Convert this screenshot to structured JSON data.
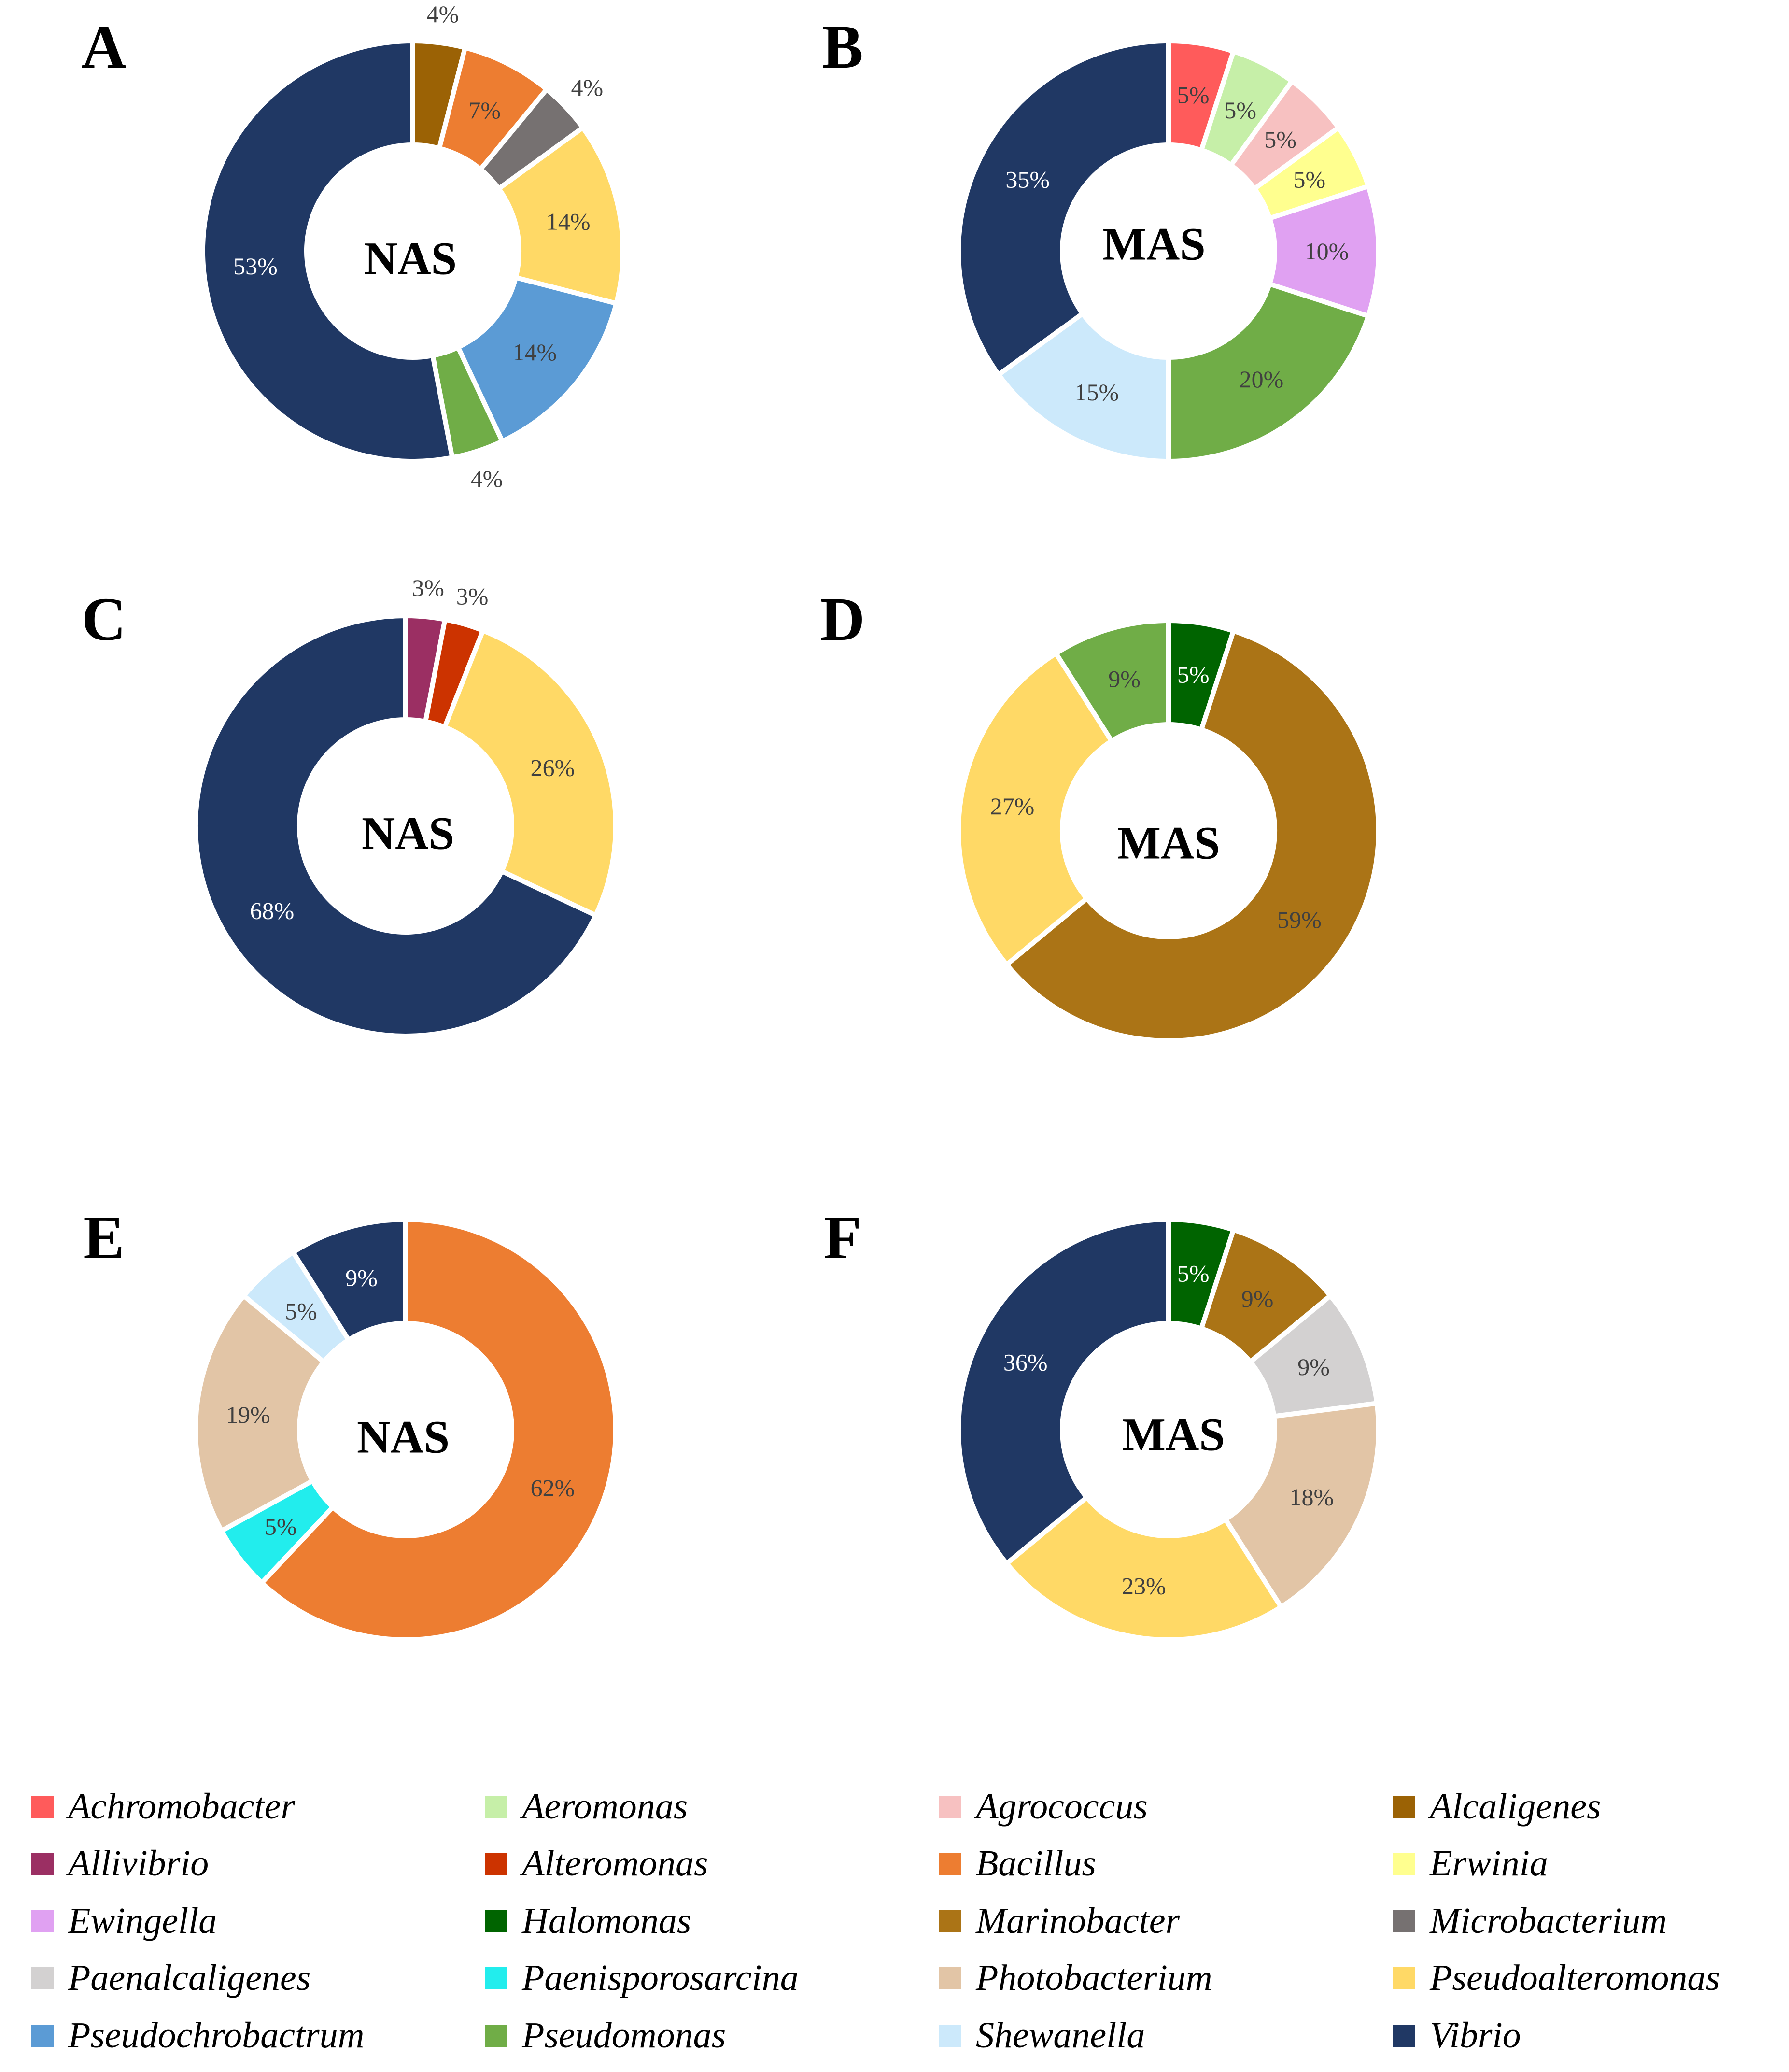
{
  "colors": {
    "Achromobacter": "#ff5b5b",
    "Aeromonas": "#c6efa8",
    "Agrococcus": "#f7c1c1",
    "Alcaligenes": "#9b6205",
    "Allivibrio": "#9b2f63",
    "Alteromonas": "#cc3300",
    "Bacillus": "#ed7d31",
    "Erwinia": "#ffff8f",
    "Ewingella": "#e0a1f2",
    "Halomonas": "#006400",
    "Marinobacter": "#ab7416",
    "Microbacterium": "#767171",
    "Paenalcaligenes": "#d3d1d1",
    "Paenisporosarcina": "#22eded",
    "Photobacterium": "#e2c5a6",
    "Pseudoalteromonas": "#ffd966",
    "Pseudochrobactrum": "#5b9bd5",
    "Pseudomonas": "#70ad47",
    "Shewanella": "#cce9fb",
    "Vibrio": "#203864"
  },
  "chart_data": [
    {
      "type": "donut",
      "panel": "A",
      "center": "NAS",
      "slices": [
        {
          "genus": "Alcaligenes",
          "value": 4,
          "label": "4%"
        },
        {
          "genus": "Bacillus",
          "value": 7,
          "label": "7%"
        },
        {
          "genus": "Microbacterium",
          "value": 4,
          "label": "4%"
        },
        {
          "genus": "Pseudoalteromonas",
          "value": 14,
          "label": "14%"
        },
        {
          "genus": "Pseudochrobactrum",
          "value": 14,
          "label": "14%"
        },
        {
          "genus": "Pseudomonas",
          "value": 4,
          "label": "4%"
        },
        {
          "genus": "Vibrio",
          "value": 53,
          "label": "53%"
        }
      ]
    },
    {
      "type": "donut",
      "panel": "B",
      "center": "MAS",
      "slices": [
        {
          "genus": "Achromobacter",
          "value": 5,
          "label": "5%"
        },
        {
          "genus": "Aeromonas",
          "value": 5,
          "label": "5%"
        },
        {
          "genus": "Agrococcus",
          "value": 5,
          "label": "5%"
        },
        {
          "genus": "Erwinia",
          "value": 5,
          "label": "5%"
        },
        {
          "genus": "Ewingella",
          "value": 10,
          "label": "10%"
        },
        {
          "genus": "Pseudomonas",
          "value": 20,
          "label": "20%"
        },
        {
          "genus": "Shewanella",
          "value": 15,
          "label": "15%"
        },
        {
          "genus": "Vibrio",
          "value": 35,
          "label": "35%"
        }
      ]
    },
    {
      "type": "donut",
      "panel": "C",
      "center": "NAS",
      "slices": [
        {
          "genus": "Allivibrio",
          "value": 3,
          "label": "3%"
        },
        {
          "genus": "Alteromonas",
          "value": 3,
          "label": "3%"
        },
        {
          "genus": "Pseudoalteromonas",
          "value": 26,
          "label": "26%"
        },
        {
          "genus": "Vibrio",
          "value": 68,
          "label": "68%"
        }
      ]
    },
    {
      "type": "donut",
      "panel": "D",
      "center": "MAS",
      "slices": [
        {
          "genus": "Halomonas",
          "value": 5,
          "label": "5%"
        },
        {
          "genus": "Marinobacter",
          "value": 59,
          "label": "59%"
        },
        {
          "genus": "Pseudoalteromonas",
          "value": 27,
          "label": "27%"
        },
        {
          "genus": "Pseudomonas",
          "value": 9,
          "label": "9%"
        }
      ]
    },
    {
      "type": "donut",
      "panel": "E",
      "center": "NAS",
      "slices": [
        {
          "genus": "Bacillus",
          "value": 62,
          "label": "62%"
        },
        {
          "genus": "Paenisporosarcina",
          "value": 5,
          "label": "5%"
        },
        {
          "genus": "Photobacterium",
          "value": 19,
          "label": "19%"
        },
        {
          "genus": "Shewanella",
          "value": 5,
          "label": "5%"
        },
        {
          "genus": "Vibrio",
          "value": 9,
          "label": "9%"
        }
      ]
    },
    {
      "type": "donut",
      "panel": "F",
      "center": "MAS",
      "slices": [
        {
          "genus": "Halomonas",
          "value": 5,
          "label": "5%"
        },
        {
          "genus": "Marinobacter",
          "value": 9,
          "label": "9%"
        },
        {
          "genus": "Paenalcaligenes",
          "value": 9,
          "label": "9%"
        },
        {
          "genus": "Photobacterium",
          "value": 18,
          "label": "18%"
        },
        {
          "genus": "Pseudoalteromonas",
          "value": 23,
          "label": "23%"
        },
        {
          "genus": "Vibrio",
          "value": 36,
          "label": "36%"
        }
      ]
    }
  ],
  "legend": [
    "Achromobacter",
    "Aeromonas",
    "Agrococcus",
    "Alcaligenes",
    "Allivibrio",
    "Alteromonas",
    "Bacillus",
    "Erwinia",
    "Ewingella",
    "Halomonas",
    "Marinobacter",
    "Microbacterium",
    "Paenalcaligenes",
    "Paenisporosarcina",
    "Photobacterium",
    "Pseudoalteromonas",
    "Pseudochrobactrum",
    "Pseudomonas",
    "Shewanella",
    "Vibrio"
  ]
}
